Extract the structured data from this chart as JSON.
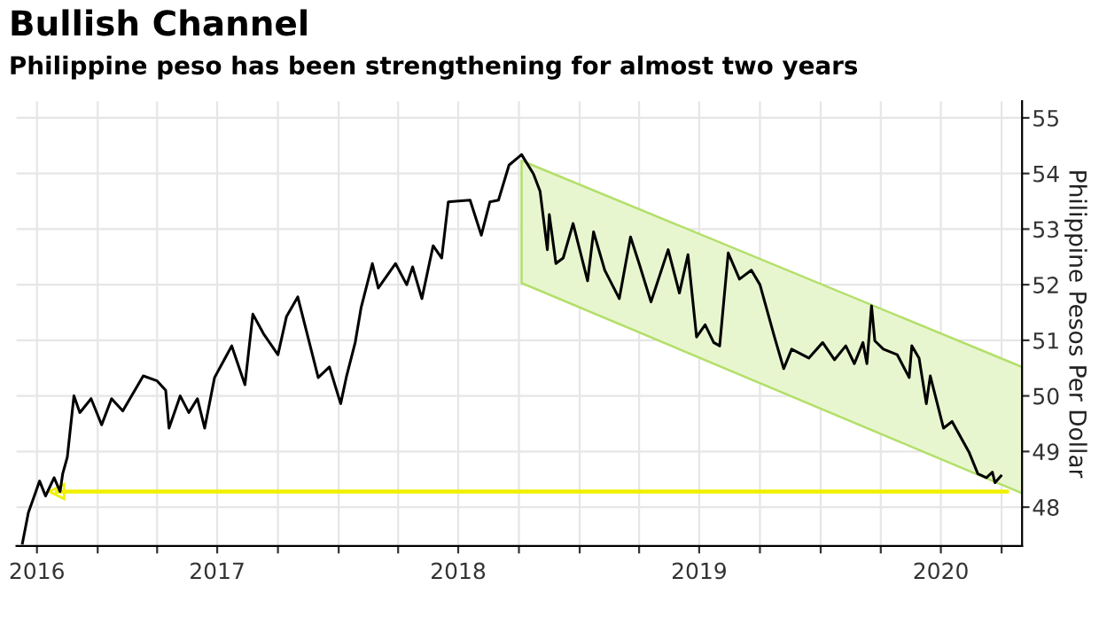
{
  "chart_data": {
    "type": "line",
    "title": "Bullish Channel",
    "subtitle": "Philippine peso has been strengthening for almost two years",
    "ylabel": "Philippine Pesos Per Dollar",
    "xlim": [
      "2016-08-31",
      "2020-11-01"
    ],
    "ylim": [
      47.3,
      55.3
    ],
    "yticks": [
      48,
      49,
      50,
      51,
      52,
      53,
      54,
      55
    ],
    "xticks": [
      {
        "value": "2016-10-01",
        "label": "2016"
      },
      {
        "value": "2017-01-01",
        "label": null
      },
      {
        "value": "2017-04-01",
        "label": null
      },
      {
        "value": "2017-07-01",
        "label": "2017"
      },
      {
        "value": "2017-10-01",
        "label": null
      },
      {
        "value": "2018-01-01",
        "label": null
      },
      {
        "value": "2018-04-01",
        "label": null
      },
      {
        "value": "2018-07-01",
        "label": "2018"
      },
      {
        "value": "2018-10-01",
        "label": null
      },
      {
        "value": "2019-01-01",
        "label": null
      },
      {
        "value": "2019-04-01",
        "label": null
      },
      {
        "value": "2019-07-01",
        "label": "2019"
      },
      {
        "value": "2019-10-01",
        "label": null
      },
      {
        "value": "2020-01-01",
        "label": null
      },
      {
        "value": "2020-04-01",
        "label": null
      },
      {
        "value": "2020-07-01",
        "label": "2020"
      },
      {
        "value": "2020-10-01",
        "label": null
      }
    ],
    "grid": true,
    "legend": false,
    "line_style": "solid",
    "series": [
      {
        "type": "line",
        "color": "#b3df6a",
        "x": [
          "2018-10-05",
          "2020-11-01"
        ],
        "values": [
          null,
          null
        ],
        "lower": [
          52.03,
          48.25
        ],
        "upper": [
          54.23,
          50.52
        ]
      },
      {
        "color": "#000000",
        "x": [
          "2016-09-09",
          "2016-09-18",
          "2016-09-27",
          "2016-10-05",
          "2016-10-14",
          "2016-10-27",
          "2016-11-05",
          "2016-11-09",
          "2016-11-16",
          "2016-11-26",
          "2016-12-05",
          "2016-12-22",
          "2017-01-07",
          "2017-01-22",
          "2017-02-08",
          "2017-03-11",
          "2017-04-01",
          "2017-04-14",
          "2017-04-19",
          "2017-05-06",
          "2017-05-19",
          "2017-06-01",
          "2017-06-12",
          "2017-06-27",
          "2017-07-23",
          "2017-08-12",
          "2017-08-24",
          "2017-09-09",
          "2017-10-01",
          "2017-10-14",
          "2017-10-31",
          "2017-12-01",
          "2017-12-18",
          "2018-01-04",
          "2018-01-13",
          "2018-01-26",
          "2018-02-04",
          "2018-02-21",
          "2018-03-02",
          "2018-03-28",
          "2018-04-14",
          "2018-04-23",
          "2018-05-07",
          "2018-05-24",
          "2018-06-06",
          "2018-06-16",
          "2018-07-19",
          "2018-08-05",
          "2018-08-18",
          "2018-08-31",
          "2018-09-16",
          "2018-10-05",
          "2018-10-23",
          "2018-11-02",
          "2018-11-13",
          "2018-11-16",
          "2018-11-26",
          "2018-12-07",
          "2018-12-22",
          "2019-01-13",
          "2019-01-22",
          "2019-02-08",
          "2019-03-02",
          "2019-03-19",
          "2019-04-01",
          "2019-04-19",
          "2019-05-15",
          "2019-06-01",
          "2019-06-14",
          "2019-06-27",
          "2019-07-10",
          "2019-07-23",
          "2019-08-01",
          "2019-08-14",
          "2019-08-31",
          "2019-09-18",
          "2019-10-01",
          "2019-10-23",
          "2019-11-06",
          "2019-11-18",
          "2019-12-14",
          "2020-01-04",
          "2020-01-22",
          "2020-02-08",
          "2020-02-21",
          "2020-03-05",
          "2020-03-11",
          "2020-03-18",
          "2020-03-23",
          "2020-04-05",
          "2020-04-26",
          "2020-05-14",
          "2020-05-18",
          "2020-05-29",
          "2020-06-09",
          "2020-06-15",
          "2020-07-05",
          "2020-07-18",
          "2020-08-13",
          "2020-08-26",
          "2020-09-08",
          "2020-09-17",
          "2020-09-21",
          "2020-09-30"
        ],
        "values": [
          47.35,
          47.9,
          48.2,
          48.47,
          48.2,
          48.53,
          48.28,
          48.6,
          48.9,
          50.0,
          49.7,
          49.95,
          49.48,
          49.95,
          49.73,
          50.36,
          50.27,
          50.1,
          49.42,
          50.0,
          49.7,
          49.95,
          49.42,
          50.33,
          50.9,
          50.2,
          51.47,
          51.12,
          50.74,
          51.43,
          51.78,
          50.33,
          50.52,
          49.86,
          50.36,
          50.96,
          51.59,
          52.38,
          51.94,
          52.38,
          52.0,
          52.32,
          51.75,
          52.7,
          52.48,
          53.49,
          53.52,
          52.89,
          53.49,
          53.52,
          54.15,
          54.34,
          53.99,
          53.68,
          52.63,
          53.26,
          52.38,
          52.48,
          53.1,
          52.07,
          52.95,
          52.26,
          51.75,
          52.86,
          52.38,
          51.69,
          52.63,
          51.85,
          52.54,
          51.06,
          51.28,
          50.96,
          50.9,
          52.57,
          52.1,
          52.26,
          52.0,
          51.06,
          50.49,
          50.84,
          50.68,
          50.96,
          50.65,
          50.9,
          50.58,
          50.96,
          50.58,
          51.62,
          50.99,
          50.84,
          50.74,
          50.33,
          50.9,
          50.68,
          49.86,
          50.36,
          49.42,
          49.54,
          48.98,
          48.6,
          48.53,
          48.63,
          48.44,
          48.56
        ]
      }
    ],
    "ref_lines": [
      {
        "axis": "y",
        "value": 48.28,
        "color": "#f0f000",
        "line_style": "solid"
      }
    ]
  }
}
